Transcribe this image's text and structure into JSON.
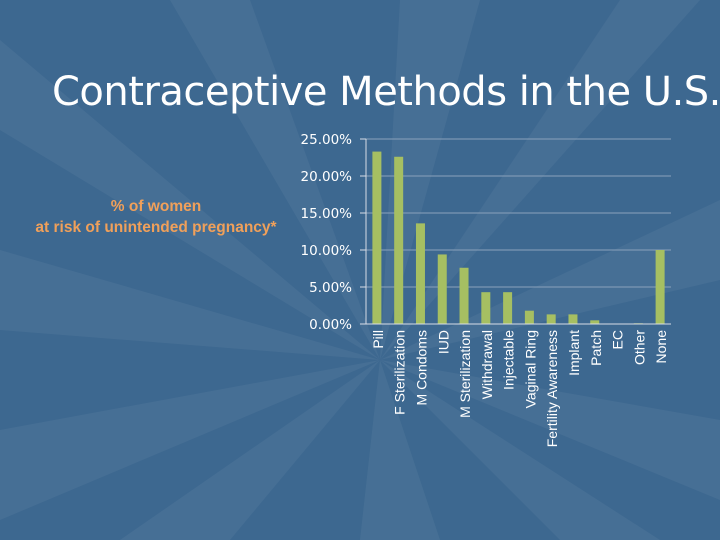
{
  "slide": {
    "title": "Contraceptive Methods in the U.S."
  },
  "colors": {
    "background": "#3d6890",
    "bar": "#a6bf62",
    "axis": "#d8dde6",
    "ylabel": "#f0a05a",
    "text": "#ffffff"
  },
  "chart_data": {
    "type": "bar",
    "title": "Contraceptive Methods in the U.S.",
    "ylabel_lines": [
      "% of women",
      "at risk of unintended pregnancy*"
    ],
    "xlabel": "",
    "ylim": [
      0,
      25
    ],
    "yticks": [
      0,
      5,
      10,
      15,
      20,
      25
    ],
    "ytick_labels": [
      "0.00%",
      "5.00%",
      "10.00%",
      "15.00%",
      "20.00%",
      "25.00%"
    ],
    "grid": true,
    "categories": [
      "Pill",
      "F Sterilization",
      "M Condoms",
      "IUD",
      "M Sterilization",
      "Withdrawal",
      "Injectable",
      "Vaginal Ring",
      "Fertility Awareness",
      "Implant",
      "Patch",
      "EC",
      "Other",
      "None"
    ],
    "values": [
      23.3,
      22.6,
      13.6,
      9.4,
      7.6,
      4.3,
      4.3,
      1.8,
      1.3,
      1.3,
      0.5,
      0.0,
      0.1,
      10.0
    ]
  }
}
